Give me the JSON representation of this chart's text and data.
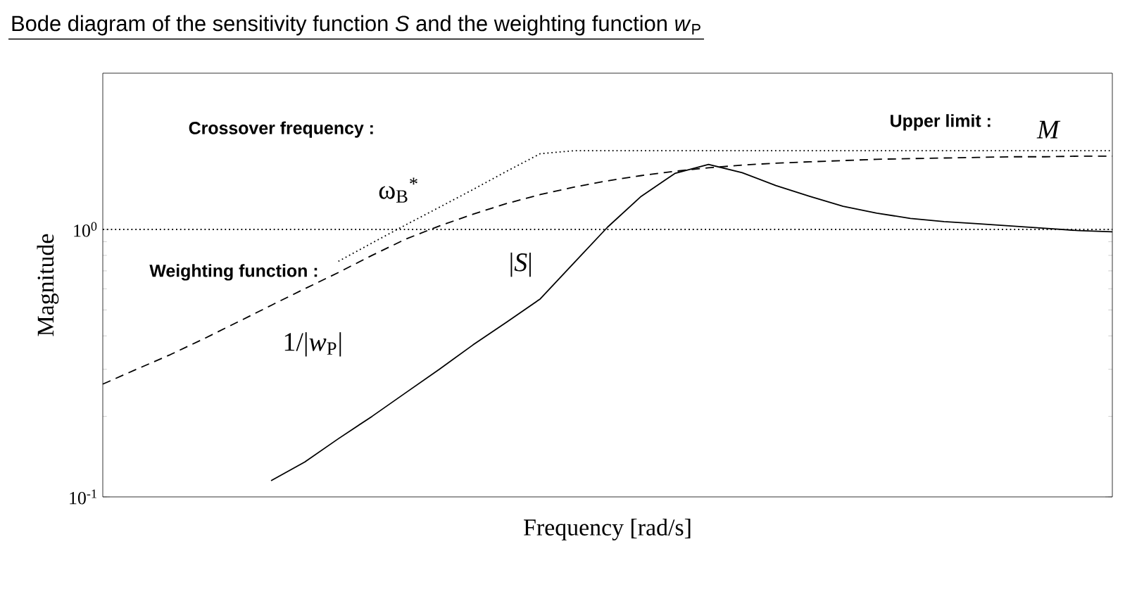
{
  "chart_data": {
    "type": "line",
    "title": "Bode diagram of the sensitivity function *S* and the weighting function *w*$_{P}$",
    "xlabel": "Frequency [rad/s]",
    "ylabel": "Magnitude",
    "categories": [
      null,
      null,
      null,
      null,
      null,
      null,
      null,
      null,
      null,
      null,
      null,
      null,
      null,
      null,
      null,
      null,
      null,
      null,
      null,
      null,
      null,
      null,
      null,
      null,
      null,
      null,
      null,
      null,
      null,
      null,
      null
    ],
    "series": [
      {
        "name": "|*S*|",
        "color": "#000000",
        "line_style": "solid",
        "values": [
          null,
          null,
          null,
          null,
          null,
          0.115,
          0.135,
          0.165,
          0.2,
          0.245,
          0.3,
          0.37,
          0.45,
          0.55,
          0.75,
          1.02,
          1.33,
          1.62,
          1.75,
          1.63,
          1.46,
          1.33,
          1.22,
          1.15,
          1.1,
          1.07,
          1.05,
          1.03,
          1.01,
          0.99,
          0.98
        ]
      },
      {
        "name": "1/|*w*$_{P}$|",
        "color": "#000000",
        "line_style": "dashed",
        "values": [
          0.264,
          0.3,
          0.34,
          0.39,
          0.45,
          0.52,
          0.6,
          0.69,
          0.8,
          0.92,
          1.03,
          1.14,
          1.25,
          1.35,
          1.44,
          1.52,
          1.59,
          1.65,
          1.7,
          1.74,
          1.77,
          1.79,
          1.81,
          1.83,
          1.84,
          1.85,
          1.86,
          1.87,
          1.87,
          1.88,
          1.88
        ]
      },
      {
        "name": "*M*",
        "color": "#000000",
        "line_style": "dotted",
        "values": [
          null,
          null,
          null,
          null,
          null,
          null,
          null,
          0.76,
          0.89,
          1.04,
          1.21,
          1.41,
          1.65,
          1.92,
          1.97,
          1.97,
          1.97,
          1.97,
          1.97,
          1.97,
          1.97,
          1.97,
          1.97,
          1.97,
          1.97,
          1.97,
          1.97,
          1.97,
          1.97,
          1.97,
          1.97
        ]
      }
    ],
    "ylim": [
      0.1,
      3.84
    ],
    "yticks": [
      {
        "value": 0.1,
        "label": "10$^{-1}$"
      },
      {
        "value": 1,
        "label": "10$^{0}$"
      }
    ],
    "log": true,
    "tick_labels": "y",
    "ref_lines": [
      {
        "axis": "y",
        "value": 1,
        "line_style": "dotted",
        "color": "#000000"
      }
    ],
    "annotations": [
      "Crossover frequency :",
      "ω$_{B}$$^{*}$",
      "Weighting function :",
      "Upper limit :"
    ]
  }
}
